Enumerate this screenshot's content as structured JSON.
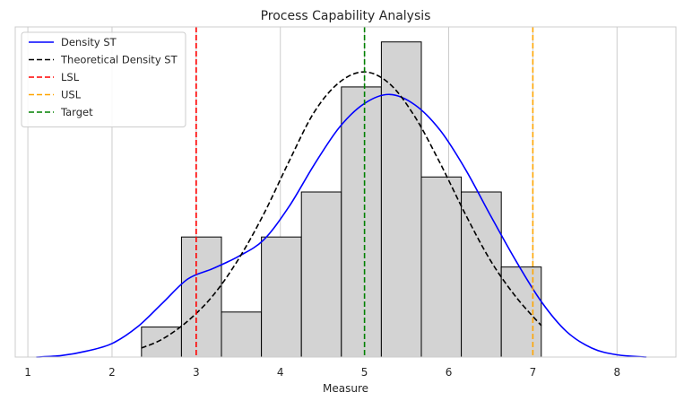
{
  "chart_data": {
    "type": "histogram",
    "title": "Process Capability Analysis",
    "xlabel": "Measure",
    "ylabel": "",
    "xlim": [
      0.85,
      8.7
    ],
    "ylim": [
      0,
      22
    ],
    "grid": "vertical",
    "x_ticks": [
      1,
      2,
      3,
      4,
      5,
      6,
      7,
      8
    ],
    "x_tick_labels": [
      "1",
      "2",
      "3",
      "4",
      "5",
      "6",
      "7",
      "8"
    ],
    "bins": [
      {
        "x0": 2.35,
        "x1": 2.825,
        "count": 2
      },
      {
        "x0": 2.825,
        "x1": 3.3,
        "count": 8
      },
      {
        "x0": 3.3,
        "x1": 3.775,
        "count": 3
      },
      {
        "x0": 3.775,
        "x1": 4.25,
        "count": 8
      },
      {
        "x0": 4.25,
        "x1": 4.725,
        "count": 11
      },
      {
        "x0": 4.725,
        "x1": 5.2,
        "count": 18
      },
      {
        "x0": 5.2,
        "x1": 5.675,
        "count": 21
      },
      {
        "x0": 5.675,
        "x1": 6.15,
        "count": 12
      },
      {
        "x0": 6.15,
        "x1": 6.625,
        "count": 11
      },
      {
        "x0": 6.625,
        "x1": 7.1,
        "count": 6
      }
    ],
    "bar_color": "#d3d3d3",
    "series": [
      {
        "name": "Density ST",
        "style": "solid",
        "color": "#0000ff",
        "x": [
          1.1,
          1.4,
          1.7,
          2.0,
          2.3,
          2.6,
          2.9,
          3.2,
          3.5,
          3.8,
          4.1,
          4.4,
          4.7,
          5.0,
          5.3,
          5.6,
          5.9,
          6.2,
          6.5,
          6.8,
          7.1,
          7.4,
          7.7,
          8.0,
          8.35
        ],
        "y": [
          0.0,
          0.1,
          0.4,
          0.9,
          2.0,
          3.6,
          5.2,
          5.9,
          6.7,
          7.8,
          10.0,
          12.8,
          15.3,
          16.9,
          17.5,
          16.8,
          15.1,
          12.5,
          9.4,
          6.4,
          3.7,
          1.7,
          0.6,
          0.15,
          0.0
        ]
      },
      {
        "name": "Theoretical Density ST",
        "style": "dashed",
        "color": "#000000",
        "x": [
          2.35,
          2.6,
          2.9,
          3.2,
          3.5,
          3.8,
          4.1,
          4.4,
          4.7,
          5.0,
          5.3,
          5.6,
          5.9,
          6.2,
          6.5,
          6.8,
          7.1
        ],
        "y": [
          0.6,
          1.2,
          2.4,
          4.1,
          6.5,
          9.5,
          13.0,
          16.3,
          18.3,
          19.0,
          18.2,
          16.0,
          12.9,
          9.5,
          6.4,
          4.0,
          2.1
        ]
      }
    ],
    "reference_lines": [
      {
        "name": "LSL",
        "x": 3.0,
        "color": "#ff0000",
        "style": "dashed"
      },
      {
        "name": "USL",
        "x": 7.0,
        "color": "#ffa500",
        "style": "dashed"
      },
      {
        "name": "Target",
        "x": 5.0,
        "color": "#008000",
        "style": "dashed"
      }
    ],
    "legend": {
      "position": "top-left",
      "entries": [
        "Density ST",
        "Theoretical Density ST",
        "LSL",
        "USL",
        "Target"
      ]
    }
  }
}
